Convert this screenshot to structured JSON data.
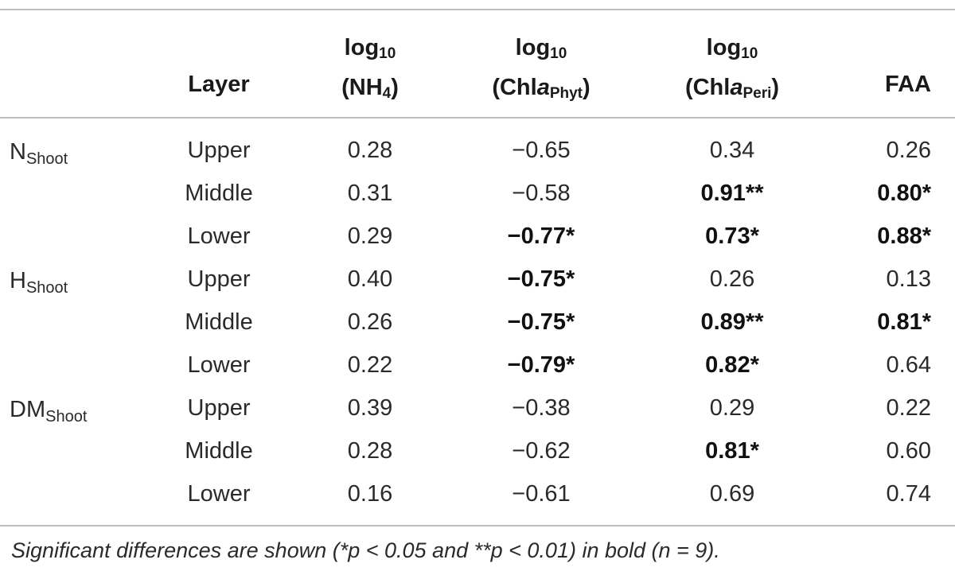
{
  "table": {
    "headers": {
      "layer": "Layer",
      "nh4": {
        "line1": "log",
        "line1_sub": "10",
        "line2_open": "(NH",
        "line2_sub": "4",
        "line2_close": ")"
      },
      "phyt": {
        "line1": "log",
        "line1_sub": "10",
        "line2_open": "(Chl",
        "line2_ital": "a",
        "line2_sub": "Phyt",
        "line2_close": ")"
      },
      "peri": {
        "line1": "log",
        "line1_sub": "10",
        "line2_open": "(Chl",
        "line2_ital": "a",
        "line2_sub": "Peri",
        "line2_close": ")"
      },
      "faa": "FAA"
    },
    "groups": [
      {
        "base": "N",
        "sub": "Shoot"
      },
      {
        "base": "H",
        "sub": "Shoot"
      },
      {
        "base": "DM",
        "sub": "Shoot"
      }
    ],
    "rows": [
      {
        "layer": "Upper",
        "nh4": "0.28",
        "phyt": "−0.65",
        "peri": "0.34",
        "faa": "0.26"
      },
      {
        "layer": "Middle",
        "nh4": "0.31",
        "phyt": "−0.58",
        "peri": "0.91**",
        "faa": "0.80*"
      },
      {
        "layer": "Lower",
        "nh4": "0.29",
        "phyt": "−0.77*",
        "peri": "0.73*",
        "faa": "0.88*"
      },
      {
        "layer": "Upper",
        "nh4": "0.40",
        "phyt": "−0.75*",
        "peri": "0.26",
        "faa": "0.13"
      },
      {
        "layer": "Middle",
        "nh4": "0.26",
        "phyt": "−0.75*",
        "peri": "0.89**",
        "faa": "0.81*"
      },
      {
        "layer": "Lower",
        "nh4": "0.22",
        "phyt": "−0.79*",
        "peri": "0.82*",
        "faa": "0.64"
      },
      {
        "layer": "Upper",
        "nh4": "0.39",
        "phyt": "−0.38",
        "peri": "0.29",
        "faa": "0.22"
      },
      {
        "layer": "Middle",
        "nh4": "0.28",
        "phyt": "−0.62",
        "peri": "0.81*",
        "faa": "0.60"
      },
      {
        "layer": "Lower",
        "nh4": "0.16",
        "phyt": "−0.61",
        "peri": "0.69",
        "faa": "0.74"
      }
    ],
    "bold_cells": [
      [
        1,
        "peri"
      ],
      [
        1,
        "faa"
      ],
      [
        2,
        "phyt"
      ],
      [
        2,
        "peri"
      ],
      [
        2,
        "faa"
      ],
      [
        3,
        "phyt"
      ],
      [
        4,
        "phyt"
      ],
      [
        4,
        "peri"
      ],
      [
        4,
        "faa"
      ],
      [
        5,
        "phyt"
      ],
      [
        5,
        "peri"
      ],
      [
        7,
        "peri"
      ]
    ]
  },
  "footnote": "Significant differences are shown (*p < 0.05 and **p < 0.01) in bold (n = 9)."
}
